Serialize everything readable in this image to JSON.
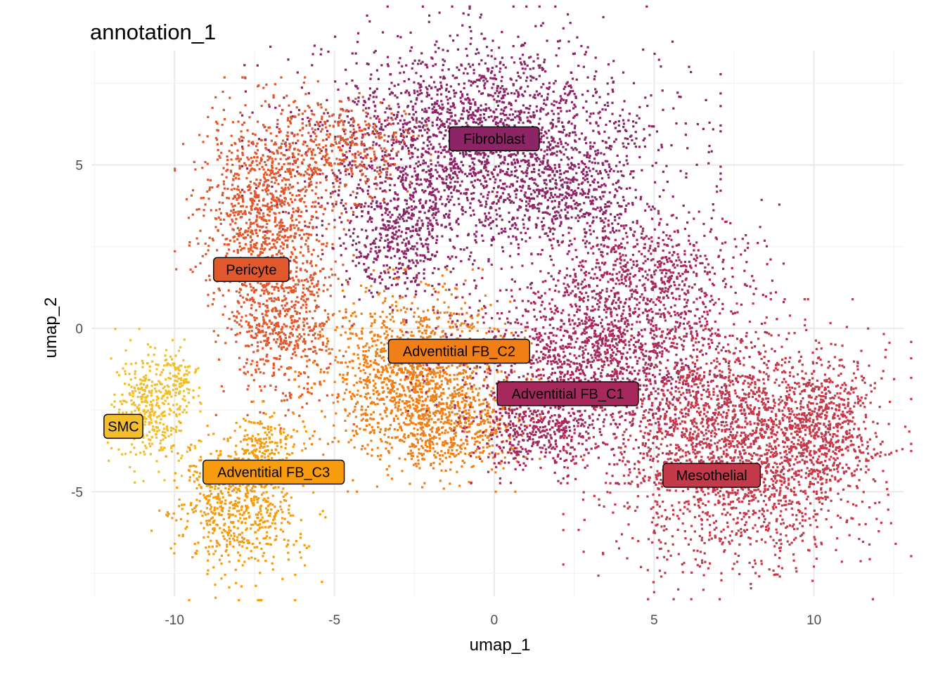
{
  "chart_data": {
    "type": "scatter",
    "title": "annotation_1",
    "xlabel": "umap_1",
    "ylabel": "umap_2",
    "xlim": [
      -12.6,
      12.8
    ],
    "ylim": [
      -8.2,
      8.5
    ],
    "x_ticks": [
      -10,
      -5,
      0,
      5,
      10
    ],
    "y_ticks": [
      -5,
      0,
      5
    ],
    "x_tick_labels": [
      "-10",
      "-5",
      "0",
      "5",
      "10"
    ],
    "y_tick_labels": [
      "-5",
      "0",
      "5"
    ],
    "grid": true,
    "legend": "none",
    "clusters": [
      {
        "label": "Fibroblast",
        "color": "#8c2466",
        "label_x": 0,
        "label_y": 5.8
      },
      {
        "label": "Pericyte",
        "color": "#e1582d",
        "label_x": -7.6,
        "label_y": 1.8
      },
      {
        "label": "Adventitial FB_C2",
        "color": "#f07f17",
        "label_x": -1.1,
        "label_y": -0.7
      },
      {
        "label": "Adventitial FB_C1",
        "color": "#a7285c",
        "label_x": 2.3,
        "label_y": -2.0
      },
      {
        "label": "SMC",
        "color": "#f2be2b",
        "label_x": -11.6,
        "label_y": -3.0
      },
      {
        "label": "Adventitial FB_C3",
        "color": "#f69c0e",
        "label_x": -6.9,
        "label_y": -4.4
      },
      {
        "label": "Mesothelial",
        "color": "#c53a4a",
        "label_x": 6.8,
        "label_y": -4.5
      }
    ],
    "regions": [
      {
        "cluster": 0,
        "cx": -0.4,
        "cy": 5.6,
        "rx": 4.4,
        "ry": 2.5,
        "n": 2600
      },
      {
        "cluster": 0,
        "cx": -3.0,
        "cy": 2.8,
        "rx": 1.4,
        "ry": 1.6,
        "n": 450
      },
      {
        "cluster": 0,
        "cx": 2.6,
        "cy": 3.8,
        "rx": 1.6,
        "ry": 1.0,
        "n": 250
      },
      {
        "cluster": 1,
        "cx": -7.1,
        "cy": 3.6,
        "rx": 1.7,
        "ry": 2.4,
        "n": 1100
      },
      {
        "cluster": 1,
        "cx": -6.6,
        "cy": 0.0,
        "rx": 1.3,
        "ry": 1.8,
        "n": 550
      },
      {
        "cluster": 1,
        "cx": -4.7,
        "cy": 5.6,
        "rx": 1.6,
        "ry": 1.1,
        "n": 350
      },
      {
        "cluster": 2,
        "cx": -2.5,
        "cy": -1.6,
        "rx": 2.3,
        "ry": 2.0,
        "n": 1500
      },
      {
        "cluster": 2,
        "cx": -1.1,
        "cy": -3.1,
        "rx": 1.5,
        "ry": 0.9,
        "n": 300
      },
      {
        "cluster": 3,
        "cx": 3.2,
        "cy": -1.0,
        "rx": 3.5,
        "ry": 2.2,
        "n": 1800
      },
      {
        "cluster": 3,
        "cx": 4.8,
        "cy": 1.8,
        "rx": 2.5,
        "ry": 1.4,
        "n": 550
      },
      {
        "cluster": 3,
        "cx": 1.2,
        "cy": -3.2,
        "rx": 1.6,
        "ry": 0.9,
        "n": 350
      },
      {
        "cluster": 4,
        "cx": -10.7,
        "cy": -2.4,
        "rx": 0.9,
        "ry": 1.4,
        "n": 380
      },
      {
        "cluster": 4,
        "cx": -9.8,
        "cy": -1.6,
        "rx": 0.5,
        "ry": 0.7,
        "n": 80
      },
      {
        "cluster": 5,
        "cx": -8.0,
        "cy": -5.6,
        "rx": 1.6,
        "ry": 1.6,
        "n": 650
      },
      {
        "cluster": 5,
        "cx": -7.2,
        "cy": -3.6,
        "rx": 0.8,
        "ry": 0.8,
        "n": 180
      },
      {
        "cluster": 6,
        "cx": 7.6,
        "cy": -3.7,
        "rx": 3.2,
        "ry": 2.7,
        "n": 2300
      },
      {
        "cluster": 6,
        "cx": 10.3,
        "cy": -3.0,
        "rx": 1.2,
        "ry": 1.6,
        "n": 450
      }
    ]
  }
}
